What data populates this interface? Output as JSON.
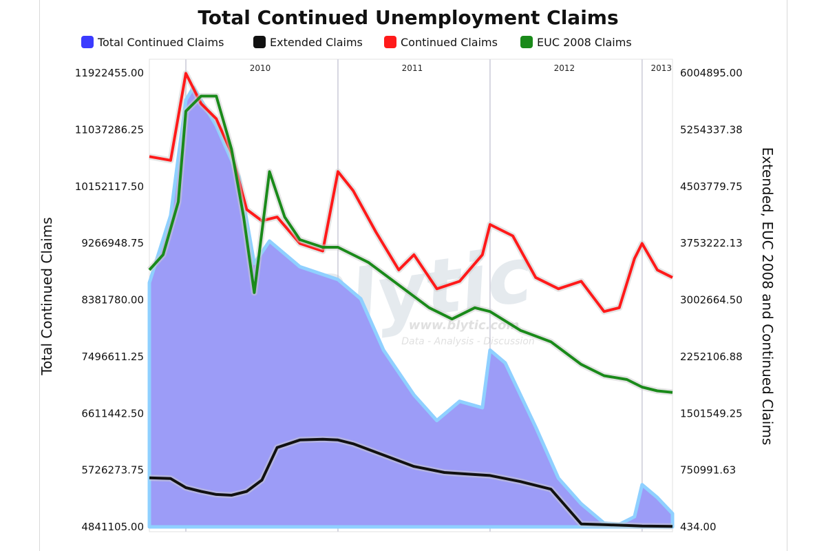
{
  "chart_data": {
    "type": "area",
    "title": "Total Continued Unemployment Claims",
    "ylabel_left": "Total Continued Claims",
    "ylabel_right": "Extended, EUC 2008 and Continued Claims",
    "left_ticks": [
      "11922455.00",
      "11037286.25",
      "10152117.50",
      "9266948.75",
      "8381780.00",
      "7496611.25",
      "6611442.50",
      "5726273.75",
      "4841105.00"
    ],
    "right_ticks": [
      "6004895.00",
      "5254337.38",
      "4503779.75",
      "3753222.13",
      "3002664.50",
      "2252106.88",
      "1501549.25",
      "750991.63",
      "434.00"
    ],
    "ylim_left": [
      4841105,
      11922455
    ],
    "ylim_right": [
      434,
      6004895
    ],
    "year_labels": [
      {
        "label": "2010",
        "x": 2010.0
      },
      {
        "label": "2011",
        "x": 2011.0
      },
      {
        "label": "2012",
        "x": 2012.0
      },
      {
        "label": "2013",
        "x": 2013.0
      }
    ],
    "xlim": [
      2009.76,
      2013.2
    ],
    "grid": "vertical year lines",
    "legend_placement": "top",
    "watermark": {
      "brand": "Blytic",
      "url": "www.blytic.com",
      "tagline": "Data - Analysis - Discussion"
    },
    "series": [
      {
        "name": "Total Continued Claims",
        "axis": "left",
        "color": "#3b3bff",
        "kind": "area",
        "x": [
          2009.76,
          2009.9,
          2010.0,
          2010.05,
          2010.2,
          2010.35,
          2010.45,
          2010.55,
          2010.75,
          2011.0,
          2011.15,
          2011.3,
          2011.5,
          2011.65,
          2011.8,
          2011.95,
          2012.0,
          2012.1,
          2012.3,
          2012.45,
          2012.6,
          2012.75,
          2012.85,
          2012.95,
          2013.0,
          2013.1,
          2013.2
        ],
        "y": [
          8650000,
          9700000,
          11500000,
          11700000,
          11100000,
          10300000,
          8950000,
          9300000,
          8900000,
          8700000,
          8400000,
          7600000,
          6900000,
          6500000,
          6800000,
          6700000,
          7600000,
          7400000,
          6400000,
          5600000,
          5200000,
          4900000,
          4880000,
          5000000,
          5500000,
          5300000,
          5050000
        ]
      },
      {
        "name": "Extended Claims",
        "axis": "right",
        "color": "#111111",
        "kind": "line",
        "x": [
          2009.76,
          2009.9,
          2010.0,
          2010.1,
          2010.2,
          2010.3,
          2010.4,
          2010.5,
          2010.6,
          2010.75,
          2010.9,
          2011.0,
          2011.1,
          2011.3,
          2011.5,
          2011.7,
          2011.85,
          2012.0,
          2012.2,
          2012.4,
          2012.6,
          2012.75,
          2012.9,
          2013.0,
          2013.2
        ],
        "y": [
          650000,
          640000,
          520000,
          470000,
          430000,
          420000,
          470000,
          620000,
          1050000,
          1150000,
          1160000,
          1150000,
          1100000,
          950000,
          800000,
          720000,
          700000,
          680000,
          600000,
          500000,
          40000,
          30000,
          20000,
          12000,
          8000
        ]
      },
      {
        "name": "Continued Claims",
        "axis": "right",
        "color": "#ff1a1a",
        "kind": "line",
        "x": [
          2009.76,
          2009.9,
          2010.0,
          2010.1,
          2010.2,
          2010.3,
          2010.4,
          2010.5,
          2010.6,
          2010.75,
          2010.9,
          2011.0,
          2011.1,
          2011.25,
          2011.4,
          2011.5,
          2011.65,
          2011.8,
          2011.95,
          2012.0,
          2012.15,
          2012.3,
          2012.45,
          2012.6,
          2012.75,
          2012.85,
          2012.95,
          2013.0,
          2013.1,
          2013.2
        ],
        "y": [
          4900000,
          4850000,
          6000000,
          5600000,
          5400000,
          4950000,
          4200000,
          4050000,
          4100000,
          3750000,
          3650000,
          4700000,
          4450000,
          3900000,
          3400000,
          3600000,
          3150000,
          3250000,
          3600000,
          4000000,
          3850000,
          3300000,
          3150000,
          3250000,
          2850000,
          2900000,
          3550000,
          3750000,
          3400000,
          3300000
        ]
      },
      {
        "name": "EUC 2008 Claims",
        "axis": "right",
        "color": "#1a8a1a",
        "kind": "line",
        "x": [
          2009.76,
          2009.85,
          2009.95,
          2010.0,
          2010.1,
          2010.2,
          2010.3,
          2010.38,
          2010.45,
          2010.55,
          2010.65,
          2010.75,
          2010.9,
          2011.0,
          2011.2,
          2011.4,
          2011.6,
          2011.75,
          2011.9,
          2012.0,
          2012.2,
          2012.4,
          2012.6,
          2012.75,
          2012.9,
          2013.0,
          2013.1,
          2013.2
        ],
        "y": [
          3400000,
          3600000,
          4300000,
          5500000,
          5700000,
          5700000,
          5000000,
          4100000,
          3100000,
          4700000,
          4100000,
          3800000,
          3700000,
          3700000,
          3500000,
          3200000,
          2900000,
          2750000,
          2900000,
          2850000,
          2600000,
          2450000,
          2150000,
          2000000,
          1950000,
          1850000,
          1800000,
          1780000
        ]
      }
    ]
  }
}
